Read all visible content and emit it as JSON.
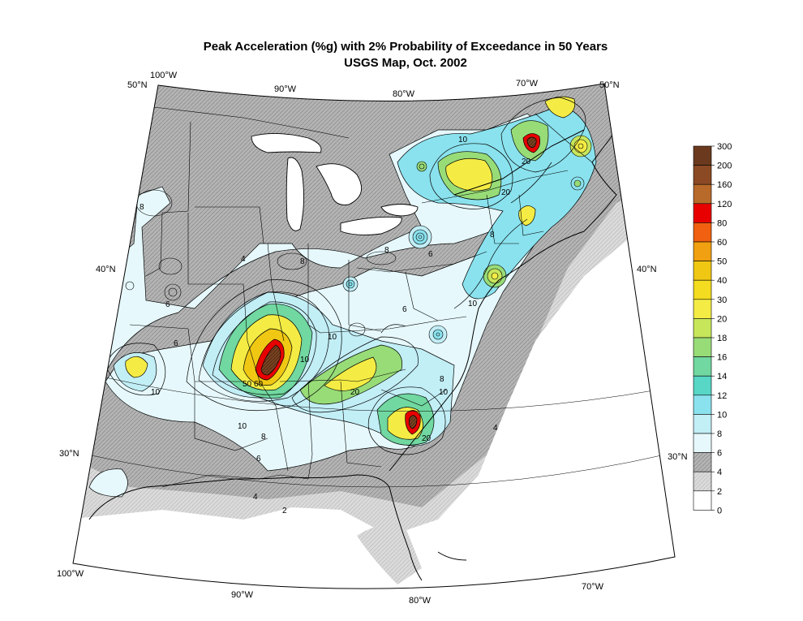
{
  "title": {
    "line1": "Peak Acceleration (%g) with 2% Probability of Exceedance in 50 Years",
    "line2": "USGS Map, Oct. 2002"
  },
  "graticule": {
    "lon_top": [
      "100°W",
      "90°W",
      "80°W",
      "70°W"
    ],
    "lon_bottom": [
      "100°W",
      "90°W",
      "80°W",
      "70°W"
    ],
    "lat_left": [
      "50°N",
      "40°N",
      "30°N"
    ],
    "lat_right": [
      "50°N",
      "40°N",
      "30°N"
    ]
  },
  "contour_labels": [
    "2",
    "4",
    "4",
    "4",
    "6",
    "6",
    "6",
    "8",
    "8",
    "8",
    "8",
    "10",
    "10",
    "10",
    "10",
    "10",
    "20",
    "20",
    "20",
    "20",
    "50",
    "60",
    "8",
    "6",
    "6",
    "8",
    "10",
    "10"
  ],
  "legend": {
    "ticks": [
      "300",
      "200",
      "160",
      "120",
      "80",
      "60",
      "50",
      "40",
      "30",
      "20",
      "18",
      "16",
      "14",
      "12",
      "10",
      "8",
      "6",
      "4",
      "2",
      "0"
    ],
    "colors": [
      "#6b3a1e",
      "#8b4a24",
      "#b86a2a",
      "#e80000",
      "#f06010",
      "#f0a010",
      "#f0c814",
      "#f4dc20",
      "#f4ec44",
      "#c8e65a",
      "#98dc78",
      "#70d8a0",
      "#58d6c6",
      "#8ae2ee",
      "#c2eef6",
      "#e6f8fc",
      "#b0b0b0",
      "#cfcfcf",
      "#ffffff"
    ]
  }
}
